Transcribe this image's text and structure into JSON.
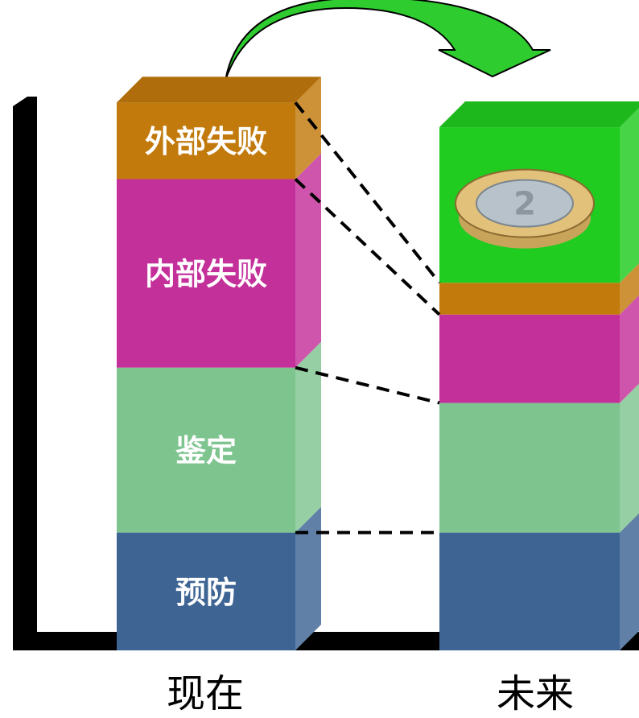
{
  "chart_data": {
    "type": "bar",
    "stacked": true,
    "categories": [
      "现在",
      "未来"
    ],
    "series": [
      {
        "name": "预防",
        "values": [
          10,
          10
        ],
        "color": "#3E6494"
      },
      {
        "name": "鉴定",
        "values": [
          14,
          11
        ],
        "color": "#7EC48F"
      },
      {
        "name": "内部失败",
        "values": [
          16,
          7.5
        ],
        "color": "#C4309A"
      },
      {
        "name": "外部失败",
        "values": [
          6.5,
          2.7
        ],
        "color": "#C27A0C"
      }
    ],
    "extra_segment": {
      "category": "未来",
      "value": 13.2,
      "color": "#1FCC1F",
      "contents": "coin-image"
    },
    "ylim": [
      0,
      47
    ],
    "grid": false,
    "legend": "none",
    "arrow": {
      "from": "现在",
      "to": "未来",
      "color": "#2ECC2E"
    }
  },
  "icons": [
    "coin-icon",
    "arrow-icon"
  ]
}
